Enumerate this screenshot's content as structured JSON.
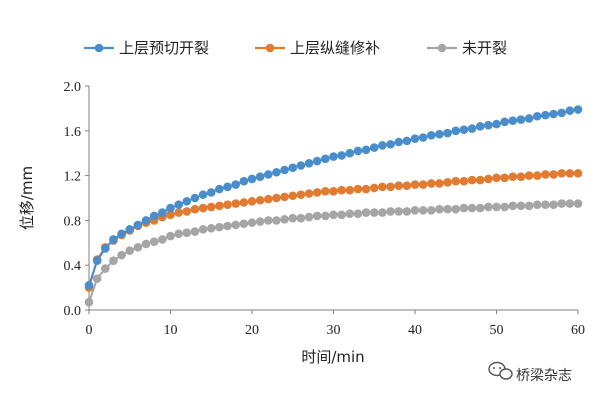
{
  "chart_data": {
    "type": "line",
    "title": "",
    "xlabel": "时间/min",
    "ylabel": "位移/mm",
    "xlim": [
      0,
      60
    ],
    "ylim": [
      0,
      2.0
    ],
    "x_ticks": [
      "0",
      "10",
      "20",
      "30",
      "40",
      "50",
      "60"
    ],
    "y_ticks": [
      "0.0",
      "0.4",
      "0.8",
      "1.2",
      "1.6",
      "2.0"
    ],
    "grid": false,
    "legend_position": "top",
    "x": [
      0,
      1,
      2,
      3,
      4,
      5,
      6,
      7,
      8,
      9,
      10,
      11,
      12,
      13,
      14,
      15,
      16,
      17,
      18,
      19,
      20,
      21,
      22,
      23,
      24,
      25,
      26,
      27,
      28,
      29,
      30,
      31,
      32,
      33,
      34,
      35,
      36,
      37,
      38,
      39,
      40,
      41,
      42,
      43,
      44,
      45,
      46,
      47,
      48,
      49,
      50,
      51,
      52,
      53,
      54,
      55,
      56,
      57,
      58,
      59,
      60
    ],
    "series": [
      {
        "name": "上层预切开裂",
        "color": "#4A8DCB",
        "values": [
          0.22,
          0.44,
          0.55,
          0.63,
          0.68,
          0.72,
          0.76,
          0.8,
          0.84,
          0.87,
          0.91,
          0.94,
          0.97,
          1.0,
          1.03,
          1.05,
          1.08,
          1.1,
          1.12,
          1.15,
          1.17,
          1.19,
          1.21,
          1.23,
          1.25,
          1.27,
          1.29,
          1.31,
          1.33,
          1.35,
          1.37,
          1.38,
          1.4,
          1.42,
          1.43,
          1.45,
          1.47,
          1.48,
          1.5,
          1.51,
          1.53,
          1.54,
          1.56,
          1.57,
          1.58,
          1.6,
          1.61,
          1.62,
          1.64,
          1.65,
          1.66,
          1.68,
          1.69,
          1.7,
          1.71,
          1.73,
          1.74,
          1.75,
          1.76,
          1.78,
          1.79
        ]
      },
      {
        "name": "上层纵缝修补",
        "color": "#E07B31",
        "values": [
          0.2,
          0.45,
          0.56,
          0.62,
          0.67,
          0.71,
          0.75,
          0.78,
          0.8,
          0.83,
          0.85,
          0.87,
          0.88,
          0.9,
          0.91,
          0.92,
          0.93,
          0.94,
          0.95,
          0.96,
          0.97,
          0.98,
          0.99,
          1.0,
          1.01,
          1.02,
          1.03,
          1.04,
          1.05,
          1.06,
          1.06,
          1.07,
          1.07,
          1.08,
          1.08,
          1.09,
          1.1,
          1.1,
          1.11,
          1.11,
          1.12,
          1.12,
          1.13,
          1.13,
          1.14,
          1.15,
          1.15,
          1.16,
          1.16,
          1.17,
          1.18,
          1.18,
          1.19,
          1.19,
          1.2,
          1.2,
          1.21,
          1.21,
          1.22,
          1.22,
          1.22
        ]
      },
      {
        "name": "未开裂",
        "color": "#A5A5A5",
        "values": [
          0.07,
          0.28,
          0.37,
          0.44,
          0.49,
          0.53,
          0.56,
          0.59,
          0.61,
          0.63,
          0.66,
          0.68,
          0.69,
          0.7,
          0.72,
          0.73,
          0.74,
          0.75,
          0.76,
          0.77,
          0.78,
          0.79,
          0.8,
          0.8,
          0.81,
          0.82,
          0.82,
          0.83,
          0.84,
          0.84,
          0.85,
          0.85,
          0.86,
          0.86,
          0.87,
          0.87,
          0.87,
          0.88,
          0.88,
          0.88,
          0.89,
          0.89,
          0.89,
          0.9,
          0.9,
          0.9,
          0.91,
          0.91,
          0.91,
          0.92,
          0.92,
          0.92,
          0.93,
          0.93,
          0.93,
          0.94,
          0.94,
          0.94,
          0.95,
          0.95,
          0.95
        ]
      }
    ]
  },
  "watermark": {
    "text": "桥梁杂志",
    "icon": "wechat-icon"
  }
}
